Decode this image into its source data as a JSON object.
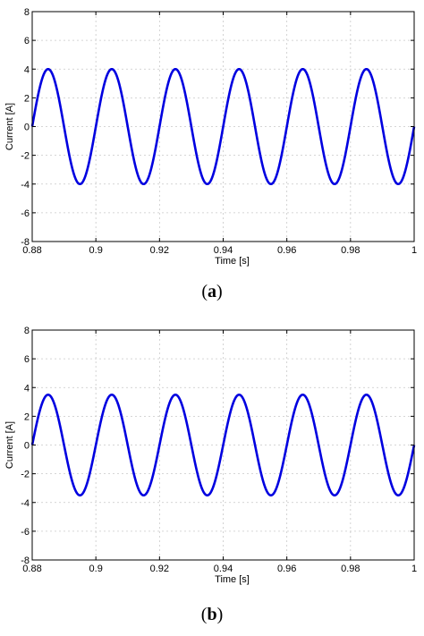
{
  "chart_data": [
    {
      "type": "line",
      "panel_label": "a",
      "title": "",
      "xlabel": "Time [s]",
      "ylabel": "Current [A]",
      "xlim": [
        0.88,
        1.0
      ],
      "ylim": [
        -8,
        8
      ],
      "xticks": [
        0.88,
        0.9,
        0.92,
        0.94,
        0.96,
        0.98,
        1
      ],
      "xtick_labels": [
        "0.88",
        "0.9",
        "0.92",
        "0.94",
        "0.96",
        "0.98",
        "1"
      ],
      "yticks": [
        -8,
        -6,
        -4,
        -2,
        0,
        2,
        4,
        6,
        8
      ],
      "ytick_labels": [
        "-8",
        "-6",
        "-4",
        "-2",
        "0",
        "2",
        "4",
        "6",
        "8"
      ],
      "grid": true,
      "series": [
        {
          "color": "#0000e0",
          "frequency_hz": 50,
          "amplitude": 4.0,
          "ripple": 0.15,
          "phase_zero_at": 0.88,
          "x": [
            0.88,
            0.885,
            0.89,
            0.895,
            0.9,
            0.905,
            0.91,
            0.915,
            0.92,
            0.925,
            0.93,
            0.935,
            0.94,
            0.945,
            0.95,
            0.955,
            0.96,
            0.965,
            0.97,
            0.975,
            0.98,
            0.985,
            0.99,
            0.995,
            1.0
          ],
          "y": [
            0,
            4,
            0,
            -4,
            0,
            4,
            0,
            -4,
            0,
            4,
            0,
            -4,
            0,
            4,
            0,
            -4,
            0,
            4,
            0,
            -4,
            0,
            4,
            0,
            -4,
            0
          ]
        }
      ]
    },
    {
      "type": "line",
      "panel_label": "b",
      "title": "",
      "xlabel": "Time [s]",
      "ylabel": "Current [A]",
      "xlim": [
        0.88,
        1.0
      ],
      "ylim": [
        -8,
        8
      ],
      "xticks": [
        0.88,
        0.9,
        0.92,
        0.94,
        0.96,
        0.98,
        1
      ],
      "xtick_labels": [
        "0.88",
        "0.9",
        "0.92",
        "0.94",
        "0.96",
        "0.98",
        "1"
      ],
      "yticks": [
        -8,
        -6,
        -4,
        -2,
        0,
        2,
        4,
        6,
        8
      ],
      "ytick_labels": [
        "-8",
        "-6",
        "-4",
        "-2",
        "0",
        "2",
        "4",
        "6",
        "8"
      ],
      "grid": true,
      "series": [
        {
          "color": "#0000e0",
          "frequency_hz": 50,
          "amplitude": 3.5,
          "ripple": 0.1,
          "phase_zero_at": 0.88,
          "x": [
            0.88,
            0.885,
            0.89,
            0.895,
            0.9,
            0.905,
            0.91,
            0.915,
            0.92,
            0.925,
            0.93,
            0.935,
            0.94,
            0.945,
            0.95,
            0.955,
            0.96,
            0.965,
            0.97,
            0.975,
            0.98,
            0.985,
            0.99,
            0.995,
            1.0
          ],
          "y": [
            0,
            3.5,
            0,
            -3.5,
            0,
            3.5,
            0,
            -3.5,
            0,
            3.5,
            0,
            -3.5,
            0,
            3.5,
            0,
            -3.5,
            0,
            3.5,
            0,
            -3.5,
            0,
            3.5,
            0,
            -3.5,
            0
          ]
        }
      ]
    }
  ],
  "captions": {
    "a": "a",
    "b": "b"
  }
}
